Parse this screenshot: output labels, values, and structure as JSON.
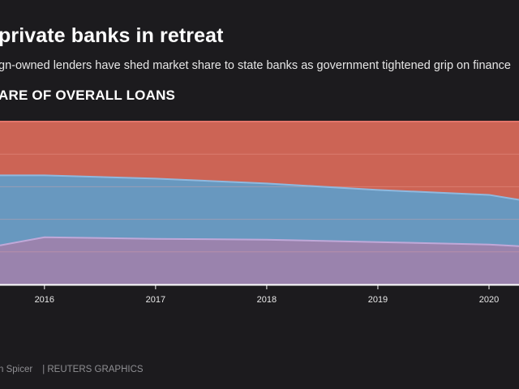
{
  "header": {
    "title": "private banks in retreat",
    "subtitle": "gn-owned lenders have shed market share to state banks as government tightened grip on finance",
    "section_label": "ARE OF OVERALL LOANS"
  },
  "footer": {
    "credit": "n Spicer",
    "source": "| REUTERS GRAPHICS"
  },
  "colors": {
    "background": "#1c1b1e",
    "state_banks": "#cc6455",
    "middle_band": "#6898bf",
    "bottom_band": "#9a83ad",
    "top_line": "#e3756a",
    "middle_line": "#8fb9df",
    "bottom_line": "#c0a8d8",
    "gridline": "#f0a9a0",
    "baseline": "#ffffff"
  },
  "chart_data": {
    "type": "area",
    "stacked": true,
    "x": [
      2015.6,
      2016,
      2017,
      2018,
      2019,
      2020,
      2020.27
    ],
    "x_ticks": [
      "2016",
      "2017",
      "2018",
      "2019",
      "2020"
    ],
    "x_tick_values": [
      2016,
      2017,
      2018,
      2019,
      2020
    ],
    "xlim": [
      2015.6,
      2020.27
    ],
    "ylim": [
      0,
      100
    ],
    "grid": true,
    "gridlines_y": [
      20,
      40,
      60,
      80
    ],
    "series": [
      {
        "values": [
          24,
          29,
          28,
          27.5,
          26,
          24.5,
          23.5
        ]
      },
      {
        "values": [
          43,
          38,
          37,
          34.5,
          32,
          30.5,
          28.5
        ]
      },
      {
        "values": [
          33,
          33,
          35,
          38,
          42,
          45,
          48
        ]
      }
    ]
  }
}
